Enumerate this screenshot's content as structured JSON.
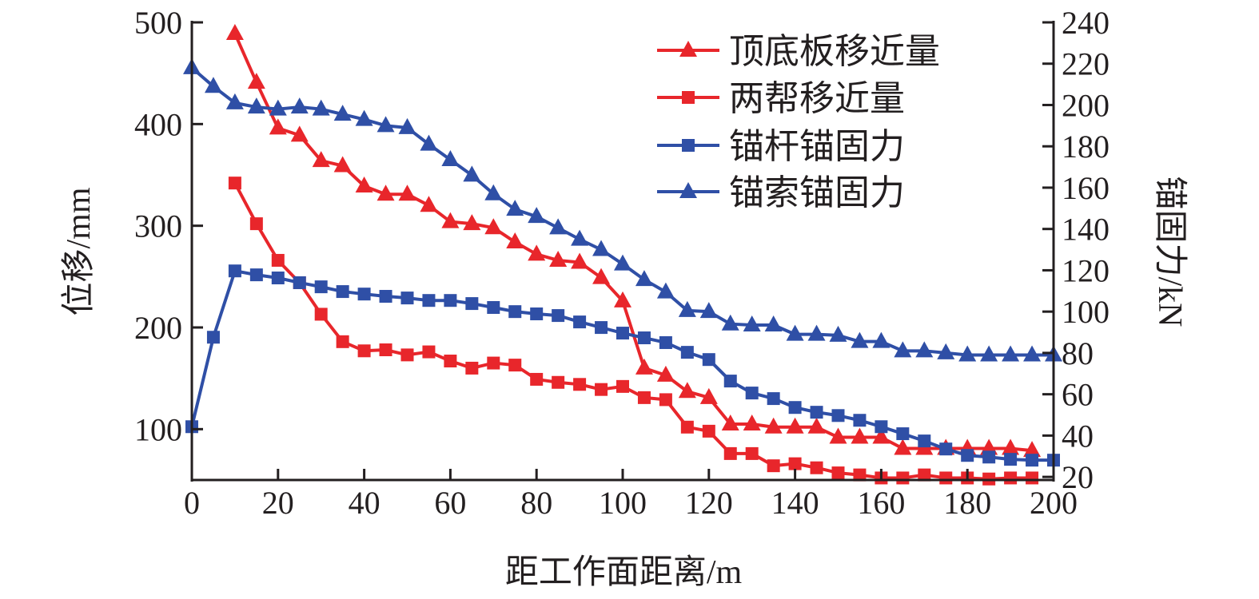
{
  "chart_data": {
    "type": "line",
    "xlabel": "距工作面距离/m",
    "ylabel": "位移/mm",
    "y2label": "锚固力/kN",
    "xlim": [
      0,
      200
    ],
    "ylim": [
      50,
      500
    ],
    "y2lim": [
      18.5,
      240
    ],
    "xticks": [
      0,
      20,
      40,
      60,
      80,
      100,
      120,
      140,
      160,
      180,
      200
    ],
    "yticks": [
      100,
      200,
      300,
      400,
      500
    ],
    "y2ticks": [
      20,
      40,
      60,
      80,
      100,
      120,
      140,
      160,
      180,
      200,
      220,
      240
    ],
    "grid": false,
    "legend_position": "top-right",
    "colors": {
      "red": "#e8262b",
      "blue": "#2f4fa6",
      "axis": "#231f20"
    },
    "series": [
      {
        "name": "顶底板移近量",
        "axis": "left",
        "marker": "triangle",
        "color": "#e8262b",
        "x": [
          10,
          15,
          20,
          25,
          30,
          35,
          40,
          45,
          50,
          55,
          60,
          65,
          70,
          75,
          80,
          85,
          90,
          95,
          100,
          105,
          110,
          115,
          120,
          125,
          130,
          135,
          140,
          145,
          150,
          155,
          160,
          165,
          170,
          175,
          180,
          185,
          190,
          195
        ],
        "values": [
          489,
          441,
          396,
          389,
          364,
          359,
          339,
          331,
          331,
          320,
          304,
          302,
          298,
          284,
          272,
          266,
          264,
          249,
          226,
          160,
          153,
          137,
          131,
          105,
          105,
          102,
          102,
          102,
          92,
          92,
          92,
          81,
          81,
          81,
          81,
          81,
          81,
          79
        ]
      },
      {
        "name": "两帮移近量",
        "axis": "left",
        "marker": "square",
        "color": "#e8262b",
        "x": [
          10,
          15,
          20,
          25,
          30,
          35,
          40,
          45,
          50,
          55,
          60,
          65,
          70,
          75,
          80,
          85,
          90,
          95,
          100,
          105,
          110,
          115,
          120,
          125,
          130,
          135,
          140,
          145,
          150,
          155,
          160,
          165,
          170,
          175,
          180,
          185,
          190,
          195
        ],
        "values": [
          342,
          302,
          266,
          244,
          213,
          186,
          177,
          178,
          173,
          176,
          167,
          160,
          165,
          163,
          149,
          146,
          144,
          139,
          142,
          131,
          129,
          102,
          98,
          76,
          76,
          64,
          66,
          62,
          57,
          55,
          52,
          52,
          55,
          52,
          52,
          51,
          52,
          52
        ]
      },
      {
        "name": "锚杆锚固力",
        "axis": "right",
        "marker": "square",
        "color": "#2f4fa6",
        "x": [
          0,
          5,
          10,
          15,
          20,
          25,
          30,
          35,
          40,
          45,
          50,
          55,
          60,
          65,
          70,
          75,
          80,
          85,
          90,
          95,
          100,
          105,
          110,
          115,
          120,
          125,
          130,
          135,
          140,
          145,
          150,
          155,
          160,
          165,
          170,
          175,
          180,
          185,
          190,
          195,
          200
        ],
        "values": [
          44.3,
          87.6,
          119.7,
          117.8,
          116.3,
          114,
          112,
          109.7,
          108.5,
          107.4,
          106.6,
          105.4,
          105.4,
          103.9,
          102,
          100,
          98.9,
          98.1,
          95,
          92.3,
          89.6,
          87.3,
          85,
          80.3,
          76.8,
          66.4,
          60.6,
          57.9,
          53.6,
          51.3,
          49.7,
          47.4,
          44.3,
          40.9,
          37.4,
          33.5,
          30.4,
          29.6,
          28.5,
          28.1,
          28.1
        ]
      },
      {
        "name": "锚索锚固力",
        "axis": "right",
        "marker": "triangle",
        "color": "#2f4fa6",
        "x": [
          0,
          5,
          10,
          15,
          20,
          25,
          30,
          35,
          40,
          45,
          50,
          55,
          60,
          65,
          70,
          75,
          80,
          85,
          90,
          95,
          100,
          105,
          110,
          115,
          120,
          125,
          130,
          135,
          140,
          145,
          150,
          155,
          160,
          165,
          170,
          175,
          180,
          185,
          190,
          195,
          200
        ],
        "values": [
          218,
          209,
          201,
          199,
          198,
          199,
          198,
          195.5,
          193,
          190,
          189,
          181,
          173.5,
          166,
          157,
          149.5,
          146,
          140.5,
          135,
          130,
          123,
          115.5,
          109.5,
          100.5,
          100,
          94,
          93.5,
          93.5,
          89,
          89,
          88.5,
          85.5,
          85.5,
          81,
          81,
          80,
          79,
          79,
          79,
          79,
          79
        ]
      }
    ]
  }
}
